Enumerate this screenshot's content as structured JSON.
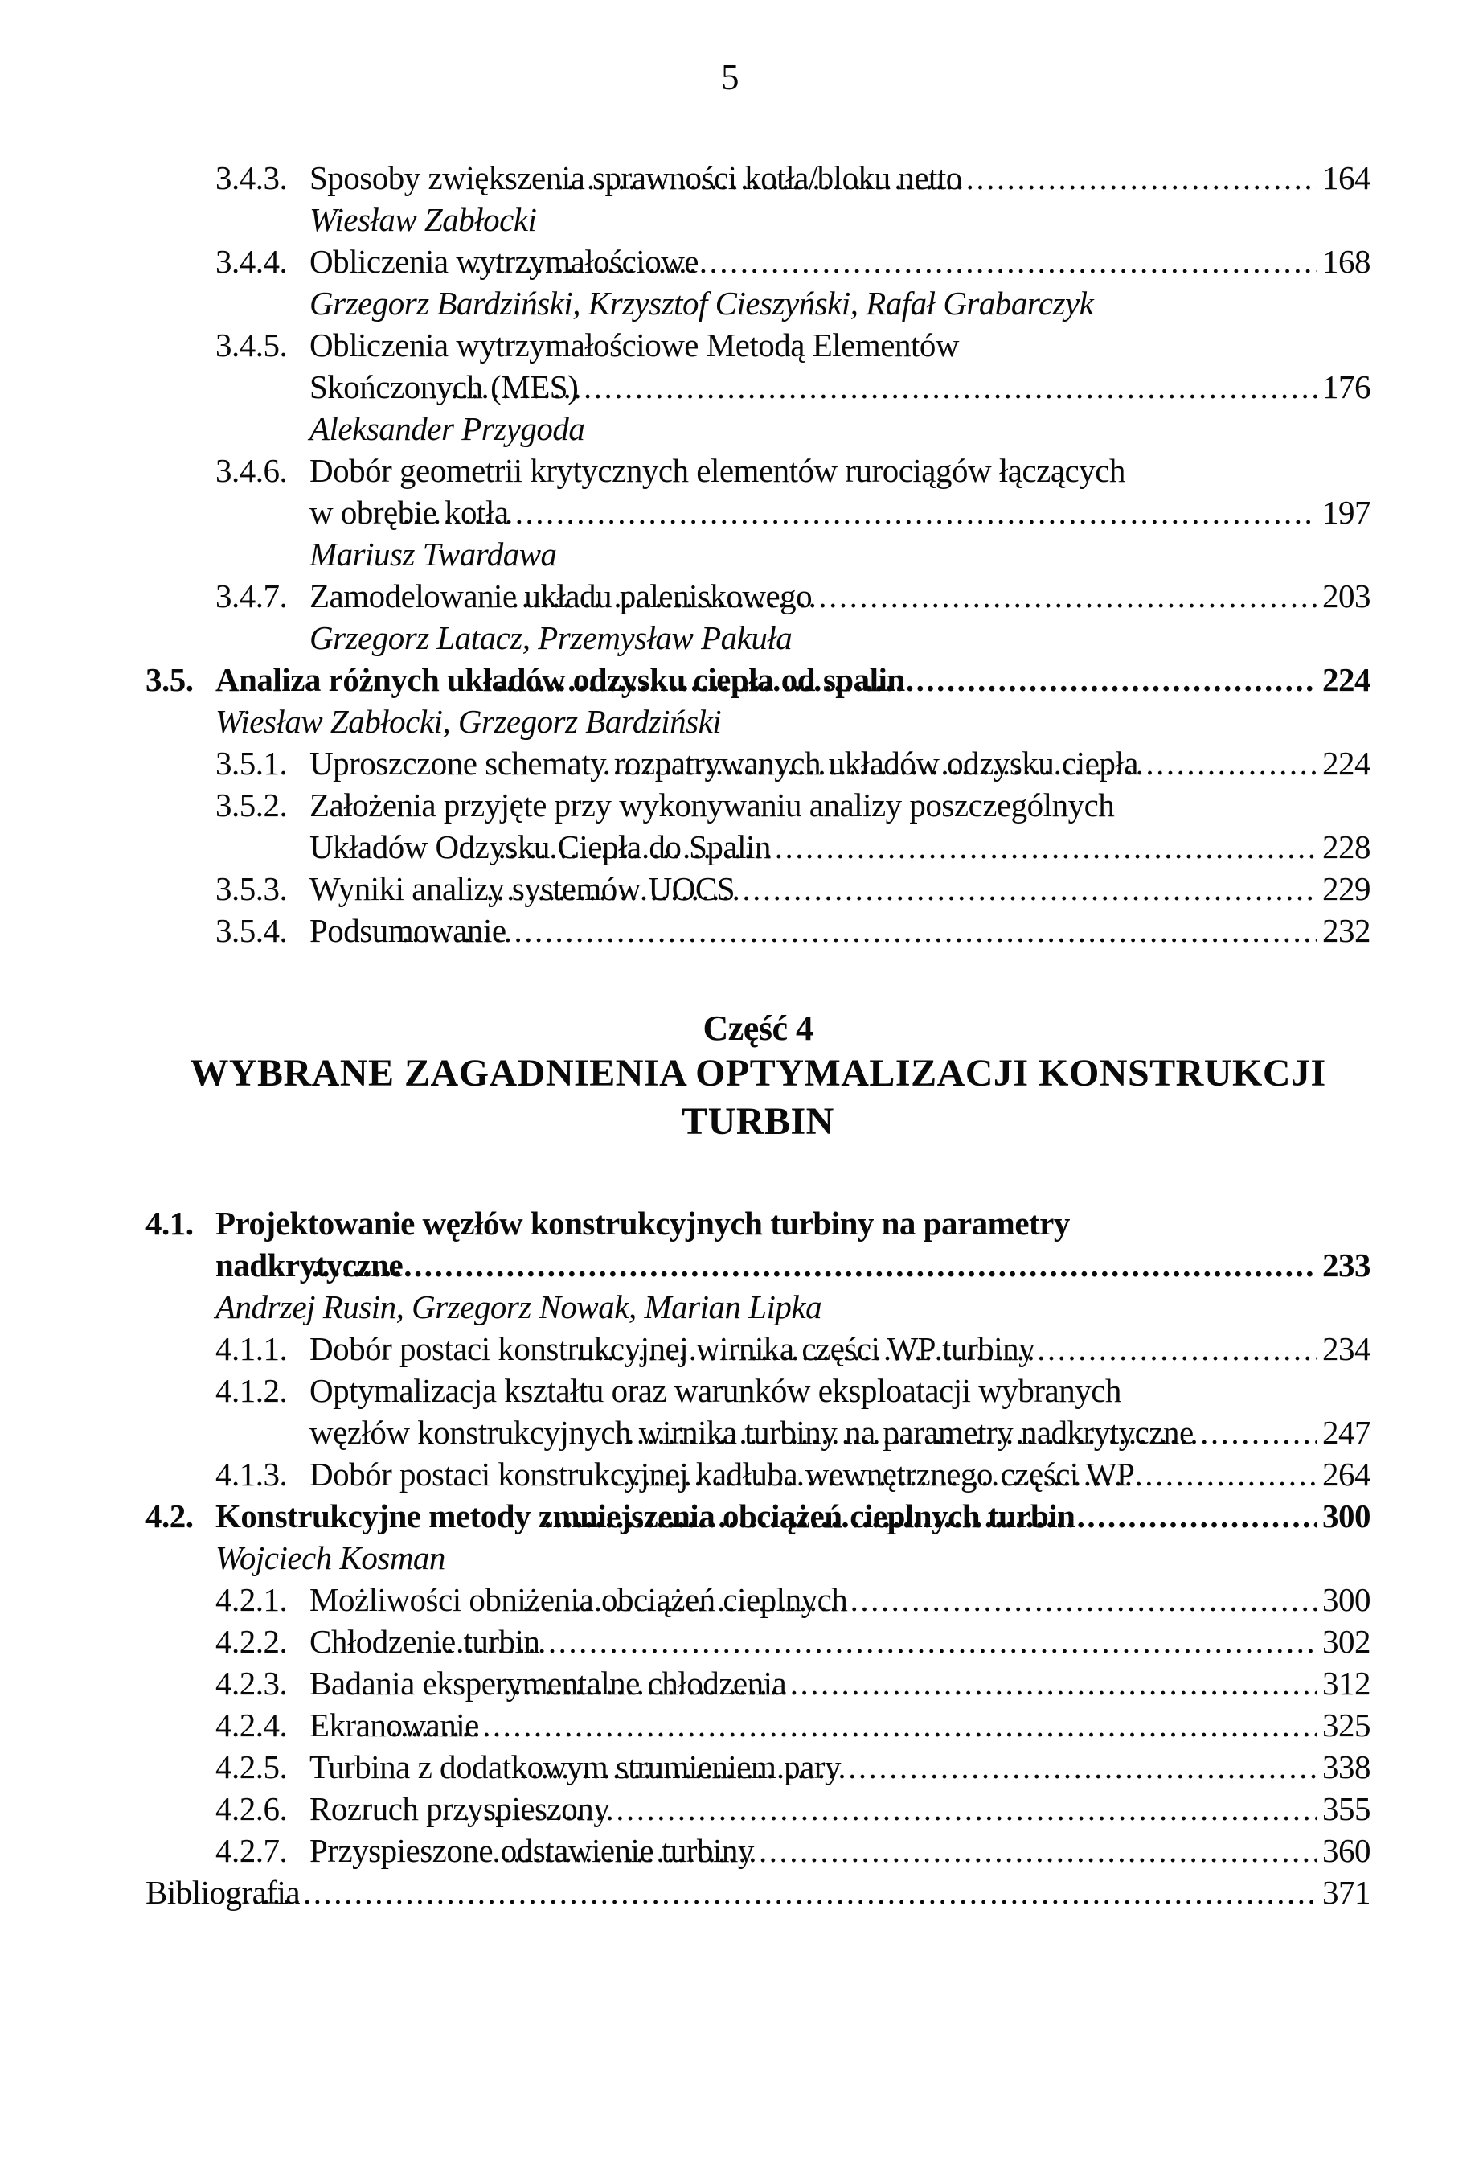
{
  "page": {
    "number": "5"
  },
  "part_heading": {
    "label": "Część 4",
    "title": "WYBRANE ZAGADNIENIA OPTYMALIZACJI KONSTRUKCJI TURBIN"
  },
  "toc": {
    "section3_rows": [
      {
        "type": "entry",
        "level": "sub",
        "num": "3.4.3.",
        "text": "Sposoby zwiększenia sprawności kotła/bloku netto",
        "page": "164"
      },
      {
        "type": "author",
        "level": "sub",
        "text": "Wiesław Zabłocki"
      },
      {
        "type": "entry",
        "level": "sub",
        "num": "3.4.4.",
        "text": "Obliczenia wytrzymałościowe",
        "page": "168"
      },
      {
        "type": "author",
        "level": "sub",
        "text": "Grzegorz Bardziński, Krzysztof Cieszyński, Rafał Grabarczyk"
      },
      {
        "type": "entry",
        "level": "sub",
        "num": "3.4.5.",
        "text": "Obliczenia wytrzymałościowe Metodą Elementów"
      },
      {
        "type": "cont",
        "level": "sub",
        "text": "Skończonych (MES)",
        "page": "176"
      },
      {
        "type": "author",
        "level": "sub",
        "text": "Aleksander Przygoda"
      },
      {
        "type": "entry",
        "level": "sub",
        "num": "3.4.6.",
        "text": "Dobór geometrii krytycznych elementów rurociągów łączących"
      },
      {
        "type": "cont",
        "level": "sub",
        "text": "w obrębie kotła",
        "page": "197"
      },
      {
        "type": "author",
        "level": "sub",
        "text": "Mariusz Twardawa"
      },
      {
        "type": "entry",
        "level": "sub",
        "num": "3.4.7.",
        "text": "Zamodelowanie układu paleniskowego",
        "page": "203"
      },
      {
        "type": "author",
        "level": "sub",
        "text": "Grzegorz Latacz, Przemysław Pakuła"
      },
      {
        "type": "entry",
        "level": "top",
        "bold": true,
        "num": "3.5.",
        "text": "Analiza różnych układów odzysku ciepła od spalin",
        "page": "224"
      },
      {
        "type": "author",
        "level": "top",
        "text": "Wiesław Zabłocki, Grzegorz Bardziński"
      },
      {
        "type": "entry",
        "level": "sub",
        "num": "3.5.1.",
        "text": "Uproszczone schematy rozpatrywanych układów odzysku ciepła",
        "page": "224"
      },
      {
        "type": "entry",
        "level": "sub",
        "num": "3.5.2.",
        "text": "Założenia przyjęte przy wykonywaniu analizy poszczególnych"
      },
      {
        "type": "cont",
        "level": "sub",
        "text": "Układów Odzysku Ciepła do Spalin",
        "page": "228"
      },
      {
        "type": "entry",
        "level": "sub",
        "num": "3.5.3.",
        "text": "Wyniki analizy systemów UOCS",
        "page": "229"
      },
      {
        "type": "entry",
        "level": "sub",
        "num": "3.5.4.",
        "text": "Podsumowanie",
        "page": "232"
      }
    ],
    "section4_rows": [
      {
        "type": "entry",
        "level": "top",
        "bold": true,
        "num": "4.1.",
        "text": "Projektowanie węzłów konstrukcyjnych turbiny na parametry"
      },
      {
        "type": "cont",
        "level": "top",
        "bold": true,
        "text": "nadkrytyczne",
        "page": "233"
      },
      {
        "type": "author",
        "level": "top",
        "text": "Andrzej Rusin, Grzegorz Nowak, Marian Lipka"
      },
      {
        "type": "entry",
        "level": "sub",
        "num": "4.1.1.",
        "text": "Dobór postaci konstrukcyjnej wirnika części WP turbiny",
        "page": "234"
      },
      {
        "type": "entry",
        "level": "sub",
        "num": "4.1.2.",
        "text": "Optymalizacja kształtu oraz warunków eksploatacji wybranych"
      },
      {
        "type": "cont",
        "level": "sub",
        "text": "węzłów konstrukcyjnych wirnika turbiny na parametry nadkrytyczne",
        "page": "247"
      },
      {
        "type": "entry",
        "level": "sub",
        "num": "4.1.3.",
        "text": "Dobór postaci konstrukcyjnej kadłuba wewnętrznego części WP",
        "page": "264"
      },
      {
        "type": "entry",
        "level": "top",
        "bold": true,
        "num": "4.2.",
        "text": "Konstrukcyjne metody zmniejszenia obciążeń cieplnych turbin",
        "page": "300"
      },
      {
        "type": "author",
        "level": "top",
        "text": "Wojciech Kosman"
      },
      {
        "type": "entry",
        "level": "sub",
        "num": "4.2.1.",
        "text": "Możliwości obniżenia obciążeń cieplnych",
        "page": "300"
      },
      {
        "type": "entry",
        "level": "sub",
        "num": "4.2.2.",
        "text": "Chłodzenie turbin",
        "page": "302"
      },
      {
        "type": "entry",
        "level": "sub",
        "num": "4.2.3.",
        "text": "Badania eksperymentalne chłodzenia",
        "page": "312"
      },
      {
        "type": "entry",
        "level": "sub",
        "num": "4.2.4.",
        "text": "Ekranowanie",
        "page": "325"
      },
      {
        "type": "entry",
        "level": "sub",
        "num": "4.2.5.",
        "text": "Turbina z dodatkowym strumieniem pary",
        "page": "338"
      },
      {
        "type": "entry",
        "level": "sub",
        "num": "4.2.6.",
        "text": "Rozruch przyspieszony",
        "page": "355"
      },
      {
        "type": "entry",
        "level": "sub",
        "num": "4.2.7.",
        "text": "Przyspieszone odstawienie turbiny",
        "page": "360"
      },
      {
        "type": "entry",
        "level": "top",
        "text": "Bibliografia",
        "page": "371"
      }
    ]
  }
}
